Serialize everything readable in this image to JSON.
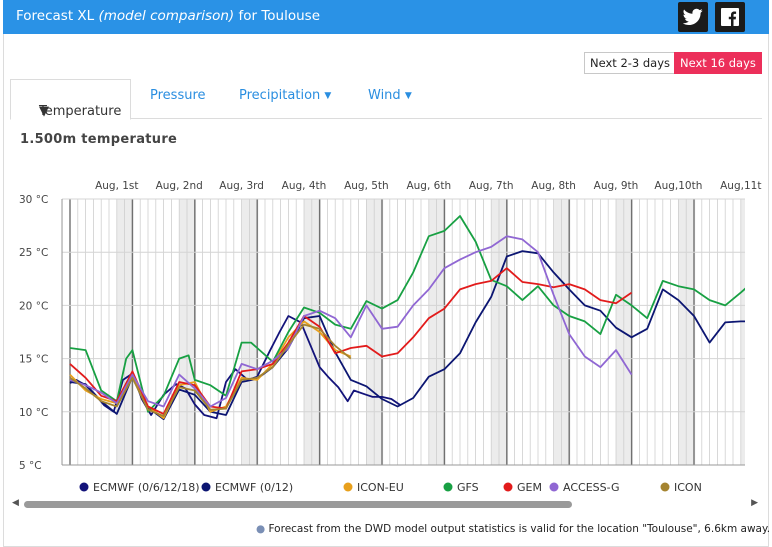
{
  "header": {
    "title_prefix": "Forecast XL",
    "title_italic": "(model comparison)",
    "title_suffix": "for Toulouse"
  },
  "social": {
    "twitter_icon": "twitter-icon",
    "facebook_icon": "facebook-icon"
  },
  "range_buttons": {
    "short": "Next 2-3 days",
    "long": "Next 16 days"
  },
  "tabs": {
    "temperature": "Temperature",
    "pressure": "Pressure",
    "precipitation": "Precipitation",
    "wind": "Wind"
  },
  "chart_title": "1.500m temperature",
  "footnote": "Forecast from the DWD model output statistics is valid for the location \"Toulouse\", 6.6km away.",
  "chart_data": {
    "type": "line",
    "title": "1.500m temperature",
    "x_unit": "days",
    "xlim": [
      0,
      11
    ],
    "ylim": [
      5,
      30
    ],
    "yticks": [
      5,
      10,
      15,
      20,
      25,
      30
    ],
    "ytick_labels": [
      "5 °C",
      "10 °C",
      "15 °C",
      "20 °C",
      "25 °C",
      "30 °C"
    ],
    "day_labels": [
      "Aug, 1st",
      "Aug, 2nd",
      "Aug, 3rd",
      "Aug, 4th",
      "Aug, 5th",
      "Aug, 6th",
      "Aug, 7th",
      "Aug, 8th",
      "Aug, 9th",
      "Aug,10th",
      "Aug,11t"
    ],
    "series": [
      {
        "name": "ECMWF (0/6/12/18)",
        "color": "#13137a",
        "x": [
          0,
          0.1,
          0.25,
          0.45,
          0.55,
          0.7,
          0.85,
          1.0,
          1.15,
          1.3,
          1.5,
          1.7,
          1.85,
          2.0,
          2.15,
          2.35,
          2.5,
          2.65,
          2.85,
          3.0,
          3.2,
          3.35,
          3.5,
          3.7,
          3.8,
          4.0,
          4.15,
          4.3,
          4.45,
          4.55,
          4.75,
          4.85,
          5.0,
          5.15,
          5.3
        ],
        "values": [
          12.7,
          13.0,
          12.5,
          11.3,
          10.6,
          10.0,
          13.0,
          13.6,
          11.2,
          9.7,
          11.6,
          12.6,
          12.2,
          10.7,
          9.7,
          9.4,
          12.8,
          14.0,
          13.0,
          13.3,
          15.7,
          17.4,
          19.0,
          18.4,
          17.0,
          14.2,
          13.2,
          12.3,
          11.0,
          12.0,
          11.6,
          11.4,
          11.4,
          11.2,
          10.6
        ]
      },
      {
        "name": "ECMWF (0/12)",
        "color": "#0c1672",
        "x": [
          0,
          0.25,
          0.5,
          0.75,
          1.0,
          1.25,
          1.5,
          1.75,
          2.0,
          2.25,
          2.5,
          2.75,
          3.0,
          3.25,
          3.5,
          3.75,
          4.0,
          4.25,
          4.5,
          4.75,
          5.0,
          5.25,
          5.5,
          5.75,
          6.0,
          6.25,
          6.5,
          6.75,
          7.0,
          7.25,
          7.5,
          7.75,
          8.0,
          8.25,
          8.5,
          8.75,
          9.0,
          9.25,
          9.5,
          9.75,
          10.0,
          10.25,
          10.5,
          10.75,
          11.0
        ],
        "values": [
          12.8,
          12.6,
          11.0,
          9.8,
          13.3,
          10.4,
          9.3,
          12.1,
          11.6,
          10.0,
          9.7,
          12.8,
          13.1,
          14.2,
          16.0,
          18.8,
          19.0,
          15.6,
          13.0,
          12.4,
          11.2,
          10.5,
          11.3,
          13.3,
          14.0,
          15.5,
          18.4,
          20.8,
          24.6,
          25.1,
          24.9,
          23.1,
          21.5,
          20.0,
          19.5,
          17.9,
          17.0,
          17.8,
          21.5,
          20.5,
          19.0,
          16.5,
          18.4,
          18.5,
          18.5
        ]
      },
      {
        "name": "ICON-EU",
        "color": "#e8a01c",
        "x": [
          0,
          0.25,
          0.5,
          0.75,
          1.0,
          1.25,
          1.5,
          1.75,
          2.0,
          2.25,
          2.5,
          2.75,
          3.0,
          3.25,
          3.5,
          3.75,
          4.0,
          4.25,
          4.5
        ],
        "values": [
          13.5,
          12.0,
          11.2,
          10.8,
          13.5,
          10.5,
          9.4,
          12.5,
          12.8,
          10.0,
          10.5,
          13.2,
          13.0,
          14.5,
          17.0,
          18.5,
          17.5,
          15.8,
          15.2
        ]
      },
      {
        "name": "GFS",
        "color": "#18a043",
        "x": [
          0,
          0.25,
          0.5,
          0.75,
          0.9,
          1.0,
          1.25,
          1.5,
          1.75,
          1.9,
          2.0,
          2.25,
          2.5,
          2.75,
          2.9,
          3.0,
          3.25,
          3.5,
          3.75,
          4.0,
          4.25,
          4.5,
          4.75,
          5.0,
          5.25,
          5.5,
          5.75,
          6.0,
          6.25,
          6.5,
          6.75,
          7.0,
          7.25,
          7.5,
          7.75,
          8.0,
          8.25,
          8.5,
          8.75,
          9.0,
          9.25,
          9.5,
          9.75,
          10.0,
          10.25,
          10.5,
          10.75,
          11.0
        ],
        "values": [
          16.0,
          15.8,
          12.0,
          11.0,
          15.0,
          15.8,
          10.0,
          11.5,
          15.0,
          15.3,
          13.0,
          12.5,
          11.5,
          16.5,
          16.5,
          16.0,
          14.7,
          17.5,
          19.8,
          19.3,
          18.2,
          17.8,
          20.4,
          19.7,
          20.5,
          23.1,
          26.5,
          27.0,
          28.4,
          26.0,
          22.4,
          21.8,
          20.5,
          21.8,
          20.0,
          19.0,
          18.5,
          17.3,
          21.0,
          20.0,
          18.8,
          22.3,
          21.8,
          21.5,
          20.5,
          20.0,
          21.2,
          22.5
        ]
      },
      {
        "name": "GEM",
        "color": "#e21b1b",
        "x": [
          0,
          0.25,
          0.5,
          0.75,
          1.0,
          1.25,
          1.5,
          1.75,
          2.0,
          2.25,
          2.5,
          2.75,
          3.0,
          3.25,
          3.5,
          3.75,
          4.0,
          4.25,
          4.5,
          4.75,
          5.0,
          5.25,
          5.5,
          5.75,
          6.0,
          6.25,
          6.5,
          6.75,
          7.0,
          7.25,
          7.5,
          7.75,
          8.0,
          8.25,
          8.5,
          8.75,
          9.0
        ],
        "values": [
          14.5,
          13.2,
          11.5,
          11.0,
          13.8,
          10.5,
          9.8,
          12.8,
          12.5,
          10.5,
          10.3,
          13.8,
          14.0,
          14.5,
          16.5,
          19.0,
          18.0,
          15.5,
          16.0,
          16.2,
          15.2,
          15.5,
          17.0,
          18.8,
          19.7,
          21.5,
          22.0,
          22.3,
          23.5,
          22.2,
          22.0,
          21.7,
          22.0,
          21.5,
          20.5,
          20.2,
          21.2
        ]
      },
      {
        "name": "ACCESS-G",
        "color": "#9067d3",
        "x": [
          0,
          0.25,
          0.5,
          0.75,
          1.0,
          1.25,
          1.5,
          1.75,
          2.0,
          2.25,
          2.5,
          2.75,
          3.0,
          3.25,
          3.5,
          3.75,
          4.0,
          4.25,
          4.5,
          4.75,
          5.0,
          5.25,
          5.5,
          5.75,
          6.0,
          6.25,
          6.5,
          6.75,
          7.0,
          7.25,
          7.5,
          7.75,
          8.0,
          8.25,
          8.5,
          8.75,
          9.0
        ],
        "values": [
          13.0,
          12.5,
          11.8,
          10.8,
          13.5,
          11.0,
          10.5,
          13.5,
          12.2,
          10.5,
          11.3,
          14.5,
          14.0,
          14.8,
          16.0,
          19.0,
          19.5,
          18.8,
          17.0,
          20.0,
          17.8,
          18.0,
          20.0,
          21.5,
          23.5,
          24.3,
          25.0,
          25.5,
          26.5,
          26.2,
          25.0,
          21.0,
          17.3,
          15.2,
          14.2,
          15.8,
          13.5
        ]
      },
      {
        "name": "ICON",
        "color": "#a58430",
        "x": [
          0,
          0.25,
          0.5,
          0.75,
          1.0,
          1.25,
          1.5,
          1.75,
          2.0,
          2.25,
          2.5,
          2.75,
          3.0,
          3.25,
          3.5,
          3.75,
          4.0,
          4.25,
          4.5
        ],
        "values": [
          13.2,
          12.2,
          11.0,
          10.5,
          13.2,
          10.2,
          9.6,
          12.3,
          12.0,
          10.2,
          10.3,
          13.0,
          13.2,
          14.2,
          16.3,
          18.2,
          17.8,
          16.2,
          15.0
        ]
      }
    ]
  }
}
